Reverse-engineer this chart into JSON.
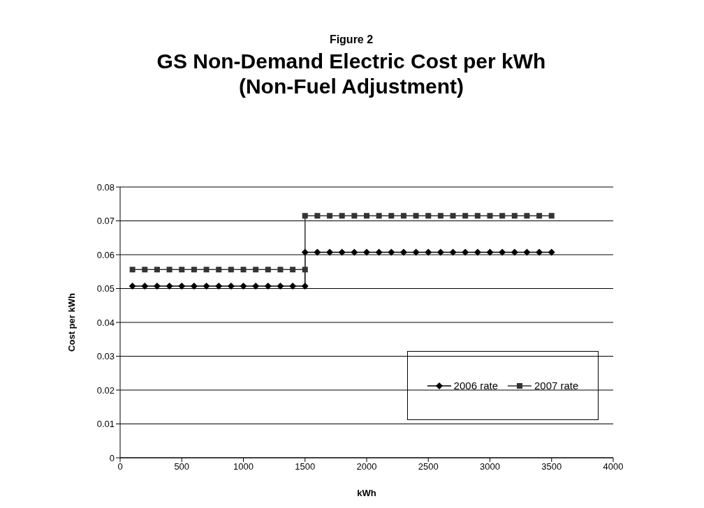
{
  "chart_data": {
    "type": "line",
    "subtitle": "Figure 2",
    "title": "GS Non-Demand Electric Cost per kWh (Non-Fuel Adjustment)",
    "xlabel": "kWh",
    "ylabel": "Cost per kWh",
    "x": [
      100,
      200,
      300,
      400,
      500,
      600,
      700,
      800,
      900,
      1000,
      1100,
      1200,
      1300,
      1400,
      1500,
      1500,
      1600,
      1700,
      1800,
      1900,
      2000,
      2100,
      2200,
      2300,
      2400,
      2500,
      2600,
      2700,
      2800,
      2900,
      3000,
      3100,
      3200,
      3300,
      3400,
      3500
    ],
    "series": [
      {
        "name": "2006 rate",
        "color": "#000000",
        "marker": "diamond",
        "values": [
          0.0507,
          0.0507,
          0.0507,
          0.0507,
          0.0507,
          0.0507,
          0.0507,
          0.0507,
          0.0507,
          0.0507,
          0.0507,
          0.0507,
          0.0507,
          0.0507,
          0.0507,
          0.0607,
          0.0607,
          0.0607,
          0.0607,
          0.0607,
          0.0607,
          0.0607,
          0.0607,
          0.0607,
          0.0607,
          0.0607,
          0.0607,
          0.0607,
          0.0607,
          0.0607,
          0.0607,
          0.0607,
          0.0607,
          0.0607,
          0.0607,
          0.0607
        ]
      },
      {
        "name": "2007 rate",
        "color": "#333333",
        "marker": "square",
        "values": [
          0.0556,
          0.0556,
          0.0556,
          0.0556,
          0.0556,
          0.0556,
          0.0556,
          0.0556,
          0.0556,
          0.0556,
          0.0556,
          0.0556,
          0.0556,
          0.0556,
          0.0556,
          0.0715,
          0.0715,
          0.0715,
          0.0715,
          0.0715,
          0.0715,
          0.0715,
          0.0715,
          0.0715,
          0.0715,
          0.0715,
          0.0715,
          0.0715,
          0.0715,
          0.0715,
          0.0715,
          0.0715,
          0.0715,
          0.0715,
          0.0715,
          0.0715
        ]
      }
    ],
    "xlim": [
      0,
      4000
    ],
    "xticks": [
      0,
      500,
      1000,
      1500,
      2000,
      2500,
      3000,
      3500,
      4000
    ],
    "ylim": [
      0,
      0.08
    ],
    "yticks": [
      0,
      0.01,
      0.02,
      0.03,
      0.04,
      0.05,
      0.06,
      0.07,
      0.08
    ],
    "grid": "y",
    "legend": "bottom right"
  }
}
